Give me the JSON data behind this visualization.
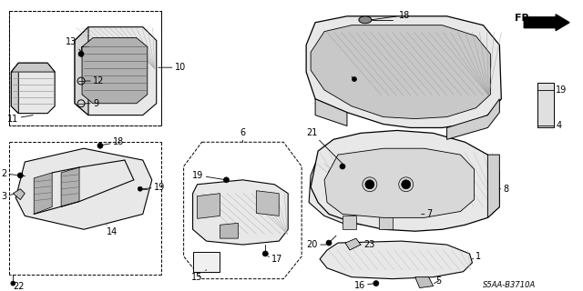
{
  "bg": "#ffffff",
  "lc": "#000000",
  "fig_w": 6.4,
  "fig_h": 3.2,
  "dpi": 100,
  "diagram_code": "S5AA-B3710A"
}
